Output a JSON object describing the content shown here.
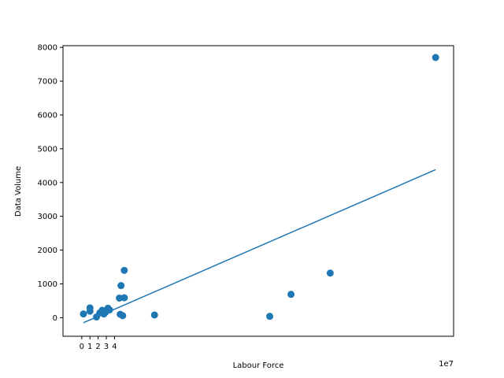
{
  "chart_data": {
    "type": "scatter",
    "title": "",
    "xlabel": "Labour Force",
    "ylabel": "Data Volume",
    "x_multiplier": "1e7",
    "xlim": [
      -2.3,
      45.5
    ],
    "ylim": [
      -550,
      8050
    ],
    "xticks": [
      0,
      1,
      2,
      3,
      4
    ],
    "yticks": [
      0,
      1000,
      2000,
      3000,
      4000,
      5000,
      6000,
      7000,
      8000
    ],
    "grid": false,
    "legend": "none",
    "points": [
      {
        "x": 0.2,
        "y": 110
      },
      {
        "x": 1.0,
        "y": 190
      },
      {
        "x": 1.0,
        "y": 290
      },
      {
        "x": 1.8,
        "y": 20
      },
      {
        "x": 2.2,
        "y": 140
      },
      {
        "x": 2.5,
        "y": 220
      },
      {
        "x": 2.7,
        "y": 110
      },
      {
        "x": 2.9,
        "y": 160
      },
      {
        "x": 3.2,
        "y": 280
      },
      {
        "x": 3.4,
        "y": 230
      },
      {
        "x": 4.6,
        "y": 580
      },
      {
        "x": 4.8,
        "y": 950
      },
      {
        "x": 4.7,
        "y": 100
      },
      {
        "x": 5.0,
        "y": 60
      },
      {
        "x": 5.2,
        "y": 590
      },
      {
        "x": 5.2,
        "y": 1400
      },
      {
        "x": 8.9,
        "y": 80
      },
      {
        "x": 23.0,
        "y": 40
      },
      {
        "x": 25.6,
        "y": 690
      },
      {
        "x": 30.4,
        "y": 1320
      },
      {
        "x": 43.3,
        "y": 7700
      }
    ],
    "trendline": {
      "x": [
        0.2,
        43.3
      ],
      "y": [
        -150,
        4380
      ]
    },
    "colors": {
      "points": "#1f77b4",
      "line": "#1f77b4"
    }
  }
}
